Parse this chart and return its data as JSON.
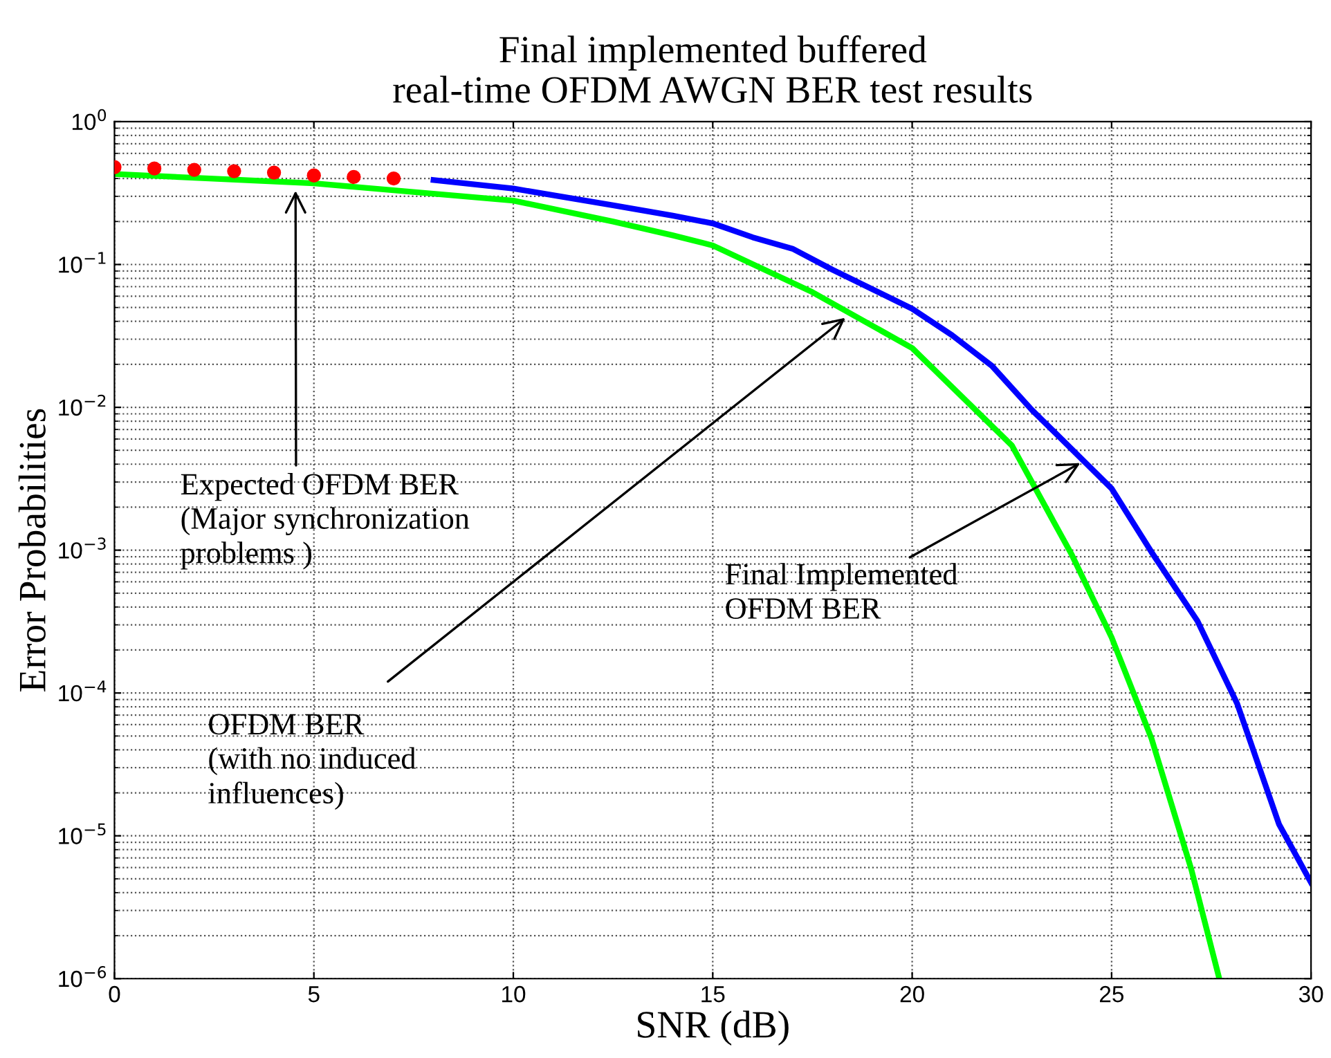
{
  "chart_data": {
    "type": "line",
    "title": "Final implemented buffered\nreal-time OFDM AWGN BER test results",
    "xlabel": "SNR (dB)",
    "ylabel": "Error Probabilities",
    "log": "y",
    "grid": true,
    "xlim": [
      0,
      30
    ],
    "xticks": [
      0,
      5,
      10,
      15,
      20,
      25,
      30
    ],
    "ylim": [
      1e-06,
      1
    ],
    "yticks": [
      {
        "value": 1e-06,
        "label": "10$^{−6}$"
      },
      {
        "value": 1e-05,
        "label": "10$^{−5}$"
      },
      {
        "value": 0.0001,
        "label": "10$^{−4}$"
      },
      {
        "value": 0.001,
        "label": "10$^{−3}$"
      },
      {
        "value": 0.01,
        "label": "10$^{−2}$"
      },
      {
        "value": 0.1,
        "label": "10$^{−1}$"
      },
      {
        "value": 1,
        "label": "10$^{0}$"
      }
    ],
    "series": [
      {
        "type": "scatter",
        "marker": "circle",
        "color": "#ff0000",
        "x": [
          0,
          1,
          2,
          3,
          4,
          5,
          6,
          7
        ],
        "values": [
          0.48,
          0.47,
          0.46,
          0.45,
          0.44,
          0.42,
          0.41,
          0.4
        ]
      },
      {
        "color": "#00ff00",
        "x": [
          0,
          5,
          10,
          12.5,
          14,
          15,
          17.5,
          20,
          22.5,
          24,
          25,
          26,
          27,
          27.7
        ],
        "values": [
          0.43,
          0.37,
          0.28,
          0.2,
          0.16,
          0.136,
          0.064,
          0.026,
          0.0054,
          0.00093,
          0.000245,
          4.8e-05,
          5.8e-06,
          1e-06
        ]
      },
      {
        "color": "#0000ff",
        "x": [
          8,
          10,
          12.5,
          14,
          15,
          16,
          17,
          18,
          20,
          21,
          22,
          23,
          24,
          25,
          26,
          27.15,
          28.15,
          29.2,
          30
        ],
        "values": [
          0.39,
          0.34,
          0.26,
          0.22,
          0.194,
          0.155,
          0.129,
          0.092,
          0.049,
          0.032,
          0.0195,
          0.0096,
          0.0051,
          0.0027,
          0.00097,
          0.00032,
          8.4e-05,
          1.2e-05,
          4.7e-06
        ]
      }
    ],
    "annotations": [
      {
        "text": "Expected OFDM BER\n(Major synchronization\nproblems )",
        "x": 4.54,
        "y": 0.35
      },
      {
        "text": "OFDM BER\n(with no induced\ninfluences)",
        "x": 18.4,
        "y": 0.044
      },
      {
        "text": "Final Implemented\nOFDM BER",
        "x": 24.3,
        "y": 0.0042
      }
    ]
  }
}
